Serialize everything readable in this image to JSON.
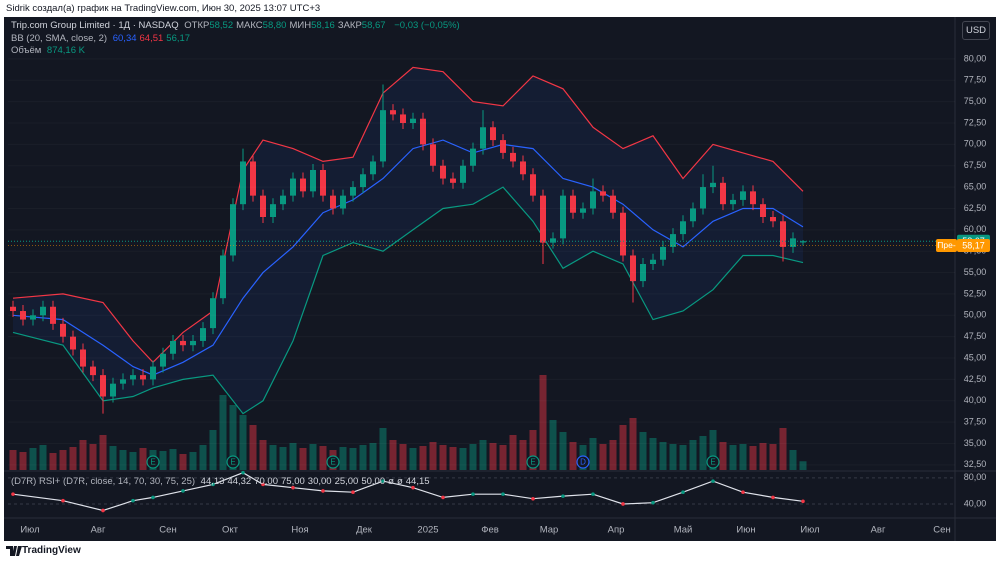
{
  "header": "Sidrik создал(а) график на TradingView.com, Июн 30, 2025 13:07 UTC+3",
  "footer": "TradingView",
  "chart_data": {
    "type": "candlestick",
    "title": "Trip.com Group Limited · 1Д · NASDAQ",
    "ohlc_legend": [
      {
        "label": "ОТКР",
        "value": "58,52"
      },
      {
        "label": "МАКС",
        "value": "58,80"
      },
      {
        "label": "МИН",
        "value": "58,16"
      },
      {
        "label": "ЗАКР",
        "value": "58,67"
      }
    ],
    "change": "−0,03 (−0,05%)",
    "currency": "USD",
    "up_color": "#089981",
    "down_color": "#f23645",
    "xlim": [
      -0.5,
      94.2
    ],
    "xticks": [
      {
        "value": 1.7,
        "label": "Июл"
      },
      {
        "value": 8.5,
        "label": "Авг"
      },
      {
        "value": 15.5,
        "label": "Сен"
      },
      {
        "value": 21.7,
        "label": "Окт"
      },
      {
        "value": 28.7,
        "label": "Ноя"
      },
      {
        "value": 35.1,
        "label": "Дек"
      },
      {
        "value": 41.5,
        "label": "2025"
      },
      {
        "value": 47.7,
        "label": "Фев"
      },
      {
        "value": 53.6,
        "label": "Мар"
      },
      {
        "value": 60.3,
        "label": "Апр"
      },
      {
        "value": 67,
        "label": "Май"
      },
      {
        "value": 73.3,
        "label": "Июн"
      },
      {
        "value": 79.7,
        "label": "Июл"
      },
      {
        "value": 86.5,
        "label": "Авг"
      },
      {
        "value": 92.9,
        "label": "Сен"
      }
    ],
    "ylim": [
      31.9,
      84.9
    ],
    "yticks": [
      {
        "value": 32.5,
        "label": "32,50"
      },
      {
        "value": 35,
        "label": "35,00"
      },
      {
        "value": 37.5,
        "label": "37,50"
      },
      {
        "value": 40,
        "label": "40,00"
      },
      {
        "value": 42.5,
        "label": "42,50"
      },
      {
        "value": 45,
        "label": "45,00"
      },
      {
        "value": 47.5,
        "label": "47,50"
      },
      {
        "value": 50,
        "label": "50,00"
      },
      {
        "value": 52.5,
        "label": "52,50"
      },
      {
        "value": 55,
        "label": "55,00"
      },
      {
        "value": 57.5,
        "label": "57,50"
      },
      {
        "value": 60,
        "label": "60,00"
      },
      {
        "value": 62.5,
        "label": "62,50"
      },
      {
        "value": 65,
        "label": "65,00"
      },
      {
        "value": 67.5,
        "label": "67,50"
      },
      {
        "value": 70,
        "label": "70,00"
      },
      {
        "value": 72.5,
        "label": "72,50"
      },
      {
        "value": 75,
        "label": "75,00"
      },
      {
        "value": 77.5,
        "label": "77,50"
      },
      {
        "value": 80,
        "label": "80,00"
      }
    ],
    "open": [
      51,
      50.5,
      49.5,
      50,
      51,
      49,
      47.5,
      46,
      44,
      43,
      40.5,
      42,
      42.5,
      43,
      42.5,
      44,
      45.5,
      47,
      46.5,
      47,
      48.5,
      52,
      57,
      63,
      68,
      64,
      61.5,
      63,
      64,
      66,
      64.5,
      67,
      64,
      62.5,
      64,
      65,
      66.5,
      68,
      74,
      73.5,
      72.5,
      73,
      70,
      67.5,
      66,
      65.5,
      67.5,
      69.5,
      72,
      70.5,
      69,
      68,
      66.5,
      64,
      58.5,
      59,
      64,
      62,
      62.5,
      64.5,
      64,
      62,
      57,
      54,
      56,
      56.5,
      58,
      59.5,
      61,
      62.5,
      65,
      65.5,
      63,
      63.5,
      64.5,
      63,
      61.5,
      61,
      58,
      58.52
    ],
    "high": [
      51.7,
      51.2,
      50.7,
      51.7,
      51.7,
      49.7,
      48.2,
      46.7,
      44.7,
      43.7,
      42.7,
      43.2,
      43.7,
      43.7,
      44.7,
      46.2,
      47.7,
      47.7,
      47.7,
      49.2,
      52.7,
      57.7,
      63.7,
      69.5,
      68.7,
      64.7,
      63.7,
      64.7,
      66.7,
      66.7,
      67.7,
      67.7,
      64.7,
      64.7,
      65.7,
      67.2,
      68.7,
      77,
      74.7,
      74.2,
      73.7,
      73.7,
      70.7,
      68.2,
      66.7,
      68.2,
      70.2,
      74,
      72.7,
      71.2,
      69.7,
      68.7,
      67.2,
      64.7,
      59.7,
      64.7,
      64.7,
      63.2,
      66,
      65.2,
      64.7,
      62.7,
      57.7,
      56.7,
      57.2,
      58.7,
      60.2,
      61.7,
      63.2,
      66.5,
      67.5,
      66.2,
      64.2,
      65.2,
      65.2,
      63.7,
      62.2,
      61.7,
      59.7,
      58.8
    ],
    "low": [
      49.8,
      48.8,
      48.8,
      49.3,
      48.3,
      46.8,
      45.3,
      43.3,
      42.3,
      38.5,
      39.8,
      41.3,
      41.8,
      41.8,
      41.8,
      43.3,
      44.8,
      45.8,
      45.8,
      46.3,
      47.8,
      51.3,
      56.3,
      62.3,
      63.3,
      60.8,
      60.8,
      62.3,
      63.3,
      63.8,
      63.8,
      63.3,
      61.8,
      61.8,
      63.3,
      64.3,
      65.8,
      67.3,
      72.8,
      71.8,
      71.8,
      69.3,
      66.8,
      65.3,
      64.8,
      64.8,
      66.8,
      68.8,
      69.8,
      68.3,
      67.3,
      65.8,
      63.3,
      56,
      57.8,
      58.3,
      61.3,
      61.3,
      61.8,
      63.3,
      61.3,
      56.3,
      51.5,
      53.3,
      55.3,
      55.8,
      57.3,
      58.8,
      60.3,
      61.8,
      64.3,
      62.3,
      62.3,
      62.8,
      62.3,
      60.8,
      60.3,
      56.3,
      57.3,
      58.16
    ],
    "close": [
      50.5,
      49.5,
      50,
      51,
      49,
      47.5,
      46,
      44,
      43,
      40.5,
      42,
      42.5,
      43,
      42.5,
      44,
      45.5,
      47,
      46.5,
      47,
      48.5,
      52,
      57,
      63,
      68,
      64,
      61.5,
      63,
      64,
      66,
      64.5,
      67,
      64,
      62.5,
      64,
      65,
      66.5,
      68,
      74,
      73.5,
      72.5,
      73,
      70,
      67.5,
      66,
      65.5,
      67.5,
      69.5,
      72,
      70.5,
      69,
      68,
      66.5,
      64,
      58.5,
      59,
      64,
      62,
      62.5,
      64.5,
      64,
      62,
      57,
      54,
      56,
      56.5,
      58,
      59.5,
      61,
      62.5,
      65,
      65.5,
      63,
      63.5,
      64.5,
      63,
      61.5,
      61,
      58,
      59,
      58.67
    ],
    "bollinger": {
      "label": "BB (20, SMA, close, 2)",
      "legend_values": [
        "60,34",
        "64,51",
        "56,17"
      ],
      "colors": {
        "basis": "#2962ff",
        "upper": "#f23645",
        "lower": "#089981",
        "fill": "#2962ff"
      },
      "x": [
        0,
        5,
        9,
        12,
        14,
        17,
        20,
        23,
        25,
        28,
        31,
        34,
        37,
        40,
        43,
        46,
        49,
        52,
        55,
        58,
        61,
        64,
        67,
        70,
        73,
        76,
        79
      ],
      "upper": [
        52,
        52.5,
        51.5,
        47,
        44.5,
        48,
        50.5,
        67,
        70.5,
        69.5,
        68,
        68.5,
        76,
        79,
        78.5,
        75,
        74.5,
        78,
        76.5,
        72,
        69.5,
        71,
        66,
        70,
        69,
        68,
        64.51
      ],
      "basis": [
        50,
        49.5,
        46.5,
        44,
        43,
        44.5,
        46.5,
        52,
        55,
        58,
        62,
        63.5,
        66,
        69.5,
        70.5,
        69,
        70,
        69.5,
        66,
        65,
        63,
        60,
        58,
        61,
        62.5,
        62.5,
        60.34
      ],
      "lower": [
        48,
        46.5,
        40,
        40.5,
        41.5,
        42.5,
        43,
        38.5,
        40,
        47,
        57,
        58.5,
        57.5,
        60,
        62.5,
        63,
        65,
        61,
        55.5,
        57.5,
        56,
        49.5,
        50.5,
        53,
        57,
        57,
        56.17
      ]
    },
    "volume": {
      "label": "Объём",
      "legend_value": "874,16 K",
      "values": [
        2000,
        1800,
        2200,
        2500,
        1700,
        2000,
        2300,
        3000,
        2600,
        3500,
        2400,
        2000,
        1800,
        2200,
        2000,
        1900,
        2100,
        1600,
        1800,
        2500,
        4000,
        7500,
        6500,
        5500,
        4500,
        3000,
        2500,
        2300,
        2700,
        2200,
        2600,
        2400,
        2000,
        2300,
        2200,
        2500,
        2700,
        4200,
        3000,
        2600,
        2200,
        2400,
        2800,
        2500,
        2300,
        2200,
        2600,
        3000,
        2700,
        2500,
        3500,
        3000,
        4000,
        9500,
        5000,
        3800,
        2800,
        2500,
        3200,
        2600,
        3000,
        4500,
        5200,
        3800,
        3200,
        2800,
        2600,
        2500,
        3000,
        3400,
        4000,
        2800,
        2500,
        2600,
        2400,
        2700,
        2600,
        4200,
        2000,
        874.16
      ]
    },
    "last_price": {
      "value": 58.67,
      "label": "58,67"
    },
    "pre_market": {
      "label": "Пре-",
      "value": 58.17,
      "value_label": "58,17"
    },
    "events": [
      {
        "x": 14,
        "label": "E",
        "color": "#089981"
      },
      {
        "x": 22,
        "label": "E",
        "color": "#089981"
      },
      {
        "x": 32,
        "label": "E",
        "color": "#089981"
      },
      {
        "x": 52,
        "label": "E",
        "color": "#089981"
      },
      {
        "x": 57,
        "label": "D",
        "color": "#2962ff"
      },
      {
        "x": 70,
        "label": "E",
        "color": "#089981"
      }
    ],
    "rsi": {
      "label": "(D7R) RSI+ (D7R, close, 14, 70, 30, 75, 25)",
      "legend_values": [
        "44,13",
        "44,32",
        "70,00",
        "75,00",
        "30,00",
        "25,00",
        "50,00",
        "ø",
        "ø",
        "44,15"
      ],
      "color": "#e0e3eb",
      "ylim": [
        20,
        89
      ],
      "yticks": [
        {
          "value": 80,
          "label": "80,00"
        },
        {
          "value": 40,
          "label": "40,00"
        }
      ],
      "x": [
        0,
        5,
        9,
        12,
        14,
        17,
        20,
        23,
        25,
        28,
        31,
        34,
        37,
        40,
        43,
        46,
        49,
        52,
        55,
        58,
        61,
        64,
        67,
        70,
        73,
        76,
        79
      ],
      "values": [
        55,
        45,
        30,
        45,
        50,
        60,
        70,
        88,
        70,
        65,
        60,
        58,
        75,
        65,
        50,
        55,
        55,
        48,
        52,
        55,
        40,
        42,
        58,
        75,
        58,
        50,
        44.13
      ]
    }
  }
}
